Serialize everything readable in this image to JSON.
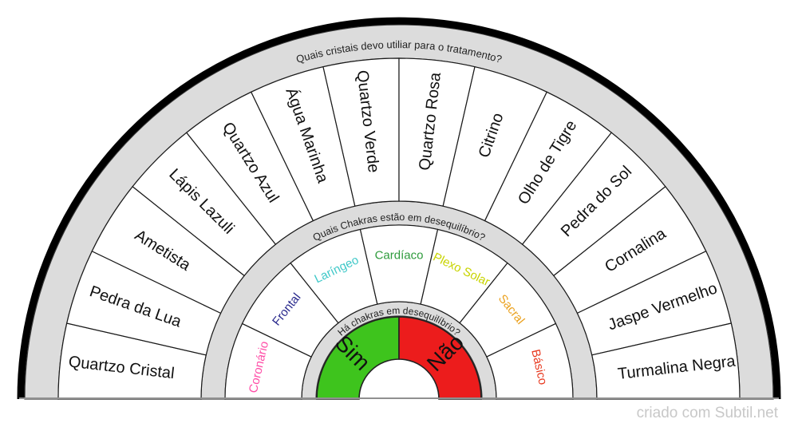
{
  "credit": "criado com Subtil.net",
  "wheel": {
    "outer_question": "Quais cristais devo utiliar para o tratamento?",
    "middle_question": "Quais Chakras estão em desequilíbrio?",
    "inner_question": "Há chakras em desequilíbrio?",
    "crystals": [
      "Quartzo Cristal",
      "Pedra da Lua",
      "Ametista",
      "Lápis Lazuli",
      "Quartzo Azul",
      "Água Marinha",
      "Quartzo Verde",
      "Quartzo Rosa",
      "Citrino",
      "Olho de Tigre",
      "Pedra do Sol",
      "Cornalina",
      "Jaspe Vermelho",
      "Turmalina Negra"
    ],
    "chakras": [
      {
        "label": "Coronário",
        "color": "#FF4FA8"
      },
      {
        "label": "Frontal",
        "color": "#28288C"
      },
      {
        "label": "Laríngeo",
        "color": "#3FC8C8"
      },
      {
        "label": "Cardíaco",
        "color": "#2E9B3C"
      },
      {
        "label": "Plexo Solar",
        "color": "#C8D400"
      },
      {
        "label": "Sacral",
        "color": "#EBA220"
      },
      {
        "label": "Básico",
        "color": "#E8391F"
      }
    ],
    "answers": [
      {
        "label": "Sim",
        "fill": "#3EC41D"
      },
      {
        "label": "Não",
        "fill": "#EC1C1C"
      }
    ],
    "colors": {
      "band_fill": "#DCDCDC",
      "band_stroke": "#3A3A3A",
      "wedge_fill": "#FFFFFF",
      "wedge_stroke": "#1A1A1A",
      "outer_ring": "#000000",
      "baseline": "#909090",
      "answer_stroke": "#222222"
    }
  }
}
